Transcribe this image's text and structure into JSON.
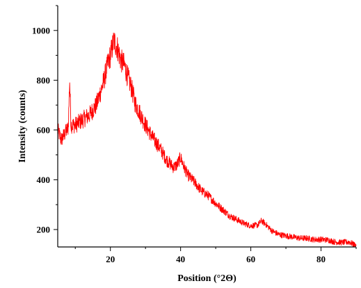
{
  "chart_data": {
    "type": "line",
    "xlabel": "Position (°2Θ)",
    "ylabel": "Intensity (counts)",
    "xlim": [
      5,
      90
    ],
    "ylim": [
      130,
      1100
    ],
    "x_ticks": [
      20,
      40,
      60,
      80
    ],
    "x_tick_labels": [
      "20",
      "40",
      "60",
      "80"
    ],
    "x_minor_ticks": [
      10,
      30,
      50,
      70,
      90
    ],
    "y_ticks": [
      200,
      400,
      600,
      800,
      1000
    ],
    "y_tick_labels": [
      "200",
      "400",
      "600",
      "800",
      "1000"
    ],
    "y_minor_ticks": [
      300,
      500,
      700,
      900,
      1100
    ],
    "grid": false,
    "legend": "none",
    "series": [
      {
        "color": "#ff0000",
        "x": [
          5,
          6,
          7,
          8,
          8.4,
          8.8,
          10,
          12,
          14,
          16,
          18,
          19,
          20,
          21,
          22,
          23,
          24,
          25,
          26,
          27,
          28,
          30,
          32,
          34,
          36,
          38,
          39,
          40,
          41,
          42,
          44,
          46,
          48,
          50,
          52,
          54,
          56,
          58,
          60,
          62,
          63,
          64,
          66,
          68,
          70,
          72,
          74,
          76,
          78,
          80,
          82,
          84,
          86,
          88,
          90
        ],
        "y": [
          600,
          560,
          585,
          610,
          800,
          620,
          620,
          640,
          660,
          700,
          790,
          850,
          900,
          960,
          930,
          880,
          860,
          810,
          770,
          710,
          680,
          620,
          570,
          530,
          480,
          450,
          460,
          490,
          450,
          420,
          390,
          355,
          335,
          305,
          280,
          255,
          240,
          225,
          215,
          218,
          235,
          225,
          195,
          180,
          175,
          170,
          165,
          165,
          160,
          160,
          158,
          150,
          148,
          150,
          135
        ]
      }
    ]
  }
}
